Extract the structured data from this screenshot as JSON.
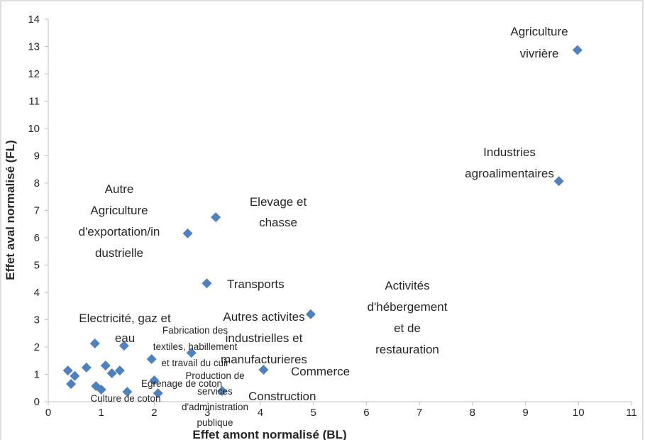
{
  "chart_data": {
    "type": "scatter",
    "x_label": "Effet amont  normalisé  (BL)",
    "y_label": "Effet aval  normalisé  (FL)",
    "color": "#4f81bd",
    "x": [
      9.98,
      9.63,
      3.16,
      2.63,
      2.99,
      4.95,
      0.88,
      1.43,
      2.7,
      1.95,
      0.37,
      0.5,
      0.43,
      0.72,
      1.08,
      1.35,
      1.2,
      2.0,
      4.06,
      0.9,
      1.0,
      1.49,
      2.07,
      3.28
    ],
    "values": [
      12.87,
      8.07,
      6.75,
      6.16,
      4.33,
      3.2,
      2.13,
      2.05,
      1.79,
      1.56,
      1.14,
      0.94,
      0.65,
      1.25,
      1.32,
      1.14,
      1.04,
      0.78,
      1.17,
      0.57,
      0.44,
      0.36,
      0.31,
      0.39
    ],
    "xlim": [
      0,
      11
    ],
    "xticks": [
      0,
      1,
      2,
      3,
      4,
      5,
      6,
      7,
      8,
      9,
      10,
      11
    ],
    "ylim": [
      0,
      14
    ],
    "yticks": [
      0,
      1,
      2,
      3,
      4,
      5,
      6,
      7,
      8,
      9,
      10,
      11,
      12,
      13,
      14
    ],
    "annotations": [
      [
        "Agriculture",
        "vivrière"
      ],
      [
        "Industries",
        "agroalimentaires"
      ],
      [
        "Elevage et",
        "chasse"
      ],
      [
        "Autre",
        "Agriculture",
        "d'exportation/in",
        "dustrielle"
      ],
      [
        "Transports"
      ],
      [
        "Activités",
        "d'hébergement",
        "et de",
        "restauration"
      ],
      [
        "Autres activites",
        "industrielles et",
        "manufacturieres"
      ],
      [
        "Electricité, gaz et",
        "eau"
      ],
      [
        "Fabrication des",
        "textiles, habillement",
        "et travail du cuir"
      ],
      [
        "Commerce"
      ],
      [
        "Production de",
        "services",
        "d'administration",
        "publique"
      ],
      [
        "Egrenage de coton"
      ],
      [
        "Culture de coton"
      ],
      [
        "Construction"
      ]
    ]
  }
}
